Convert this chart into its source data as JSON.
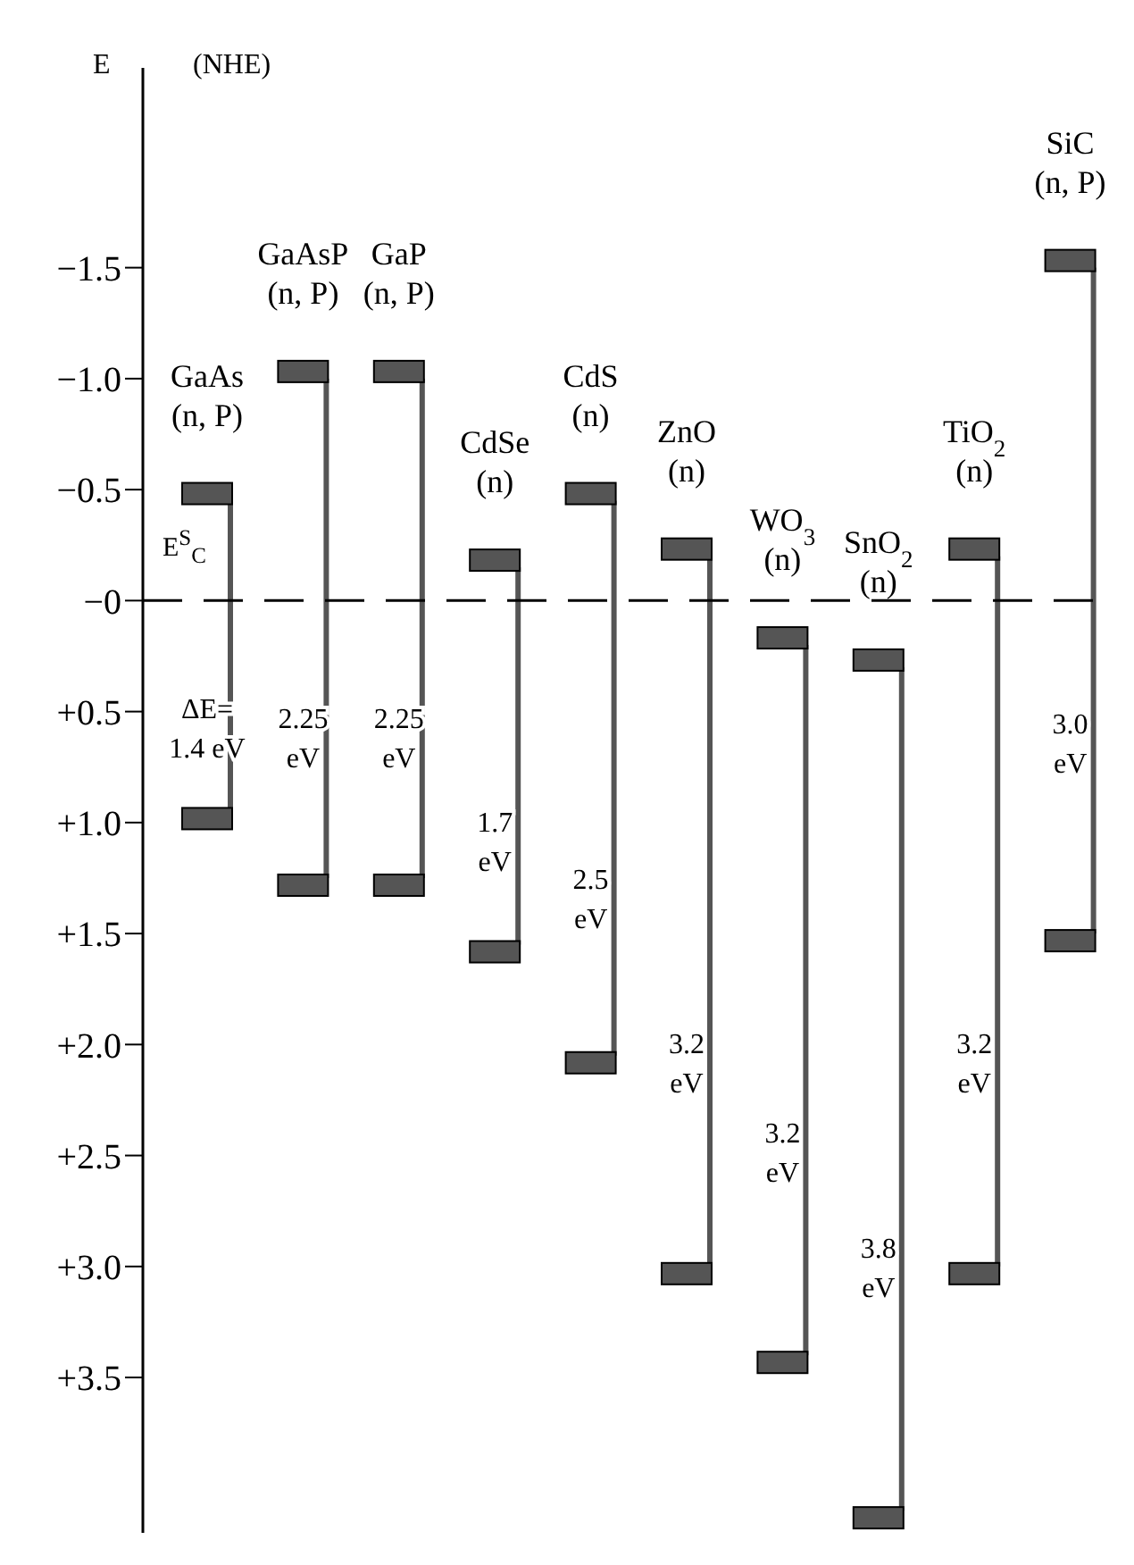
{
  "chart_data": {
    "type": "bar",
    "ylabel": "E",
    "categories": [
      "GaAs (n, P)",
      "GaAsP (n, P)",
      "GaP (n, P)",
      "CdSe (n)",
      "CdS (n)",
      "ZnO (n)",
      "WO$_{3}$ (n)",
      "SnO$_{2}$ (n)",
      "TiO$_{2}$ (n)",
      "SiC (n, P)"
    ],
    "base": [
      -0.45,
      -1.0,
      -1.0,
      -0.15,
      -0.45,
      -0.2,
      0.2,
      0.3,
      -0.2,
      -1.5
    ],
    "values": [
      1.4,
      2.25,
      2.25,
      1.7,
      2.5,
      3.2,
      3.2,
      3.8,
      3.2,
      3.0
    ],
    "value_labels": [
      "ΔE= 1.4 eV",
      "2.25 eV",
      "2.25 eV",
      "1.7 eV",
      "2.5 eV",
      "3.2 eV",
      "3.2 eV",
      "3.8 eV",
      "3.2 eV",
      "3.0 eV"
    ],
    "color": "#555555",
    "ylim": [
      4.2,
      -2.4
    ],
    "yticks": [
      {
        "value": -1.5,
        "label": "−1.5"
      },
      {
        "value": -1.0,
        "label": "−1.0"
      },
      {
        "value": -0.5,
        "label": "−0.5"
      },
      {
        "value": 0,
        "label": "−0"
      },
      {
        "value": 0.5,
        "label": "+0.5"
      },
      {
        "value": 1.0,
        "label": "+1.0"
      },
      {
        "value": 1.5,
        "label": "+1.5"
      },
      {
        "value": 2.0,
        "label": "+2.0"
      },
      {
        "value": 2.5,
        "label": "+2.5"
      },
      {
        "value": 3.0,
        "label": "+3.0"
      },
      {
        "value": 3.5,
        "label": "+3.5"
      }
    ],
    "ref_lines": [
      {
        "axis": "y",
        "value": 0,
        "line_style": "dashed",
        "color": "#000000"
      }
    ],
    "annotations": [
      "(NHE)",
      "E$^{S}$$_{C}$"
    ]
  }
}
